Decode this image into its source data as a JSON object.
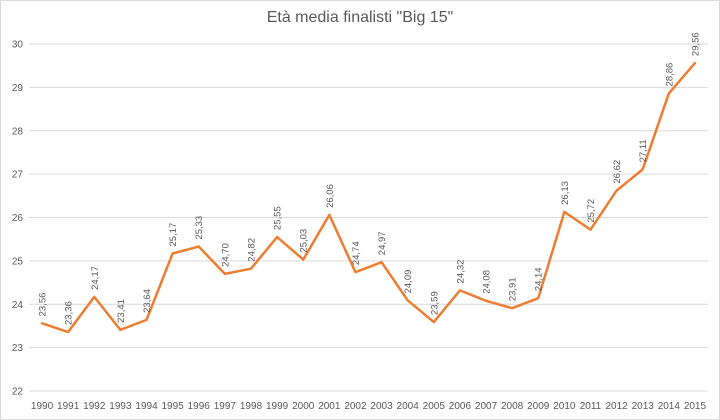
{
  "chart_data": {
    "type": "line",
    "title": "Età media finalisti \"Big 15\"",
    "xlabel": "",
    "ylabel": "",
    "ylim": [
      22,
      30
    ],
    "yticks": [
      22,
      23,
      24,
      25,
      26,
      27,
      28,
      29,
      30
    ],
    "grid": true,
    "legend": "none",
    "categories": [
      "1990",
      "1991",
      "1992",
      "1993",
      "1994",
      "1995",
      "1996",
      "1997",
      "1998",
      "1999",
      "2000",
      "2001",
      "2002",
      "2003",
      "2004",
      "2005",
      "2006",
      "2007",
      "2008",
      "2009",
      "2010",
      "2011",
      "2012",
      "2013",
      "2014",
      "2015"
    ],
    "series": [
      {
        "color": "#ed7d31",
        "values": [
          23.56,
          23.36,
          24.17,
          23.41,
          23.64,
          25.17,
          25.33,
          24.7,
          24.82,
          25.55,
          25.03,
          26.06,
          24.74,
          24.97,
          24.09,
          23.59,
          24.32,
          24.08,
          23.91,
          24.14,
          26.13,
          25.72,
          26.62,
          27.11,
          28.86,
          29.56
        ],
        "labels": [
          "23,56",
          "23,36",
          "24,17",
          "23,41",
          "23,64",
          "25,17",
          "25,33",
          "24,70",
          "24,82",
          "25,55",
          "25,03",
          "26,06",
          "24,74",
          "24,97",
          "24,09",
          "23,59",
          "24,32",
          "24,08",
          "23,91",
          "24,14",
          "26,13",
          "25,72",
          "26,62",
          "27,11",
          "28,86",
          "29,56"
        ]
      }
    ]
  }
}
